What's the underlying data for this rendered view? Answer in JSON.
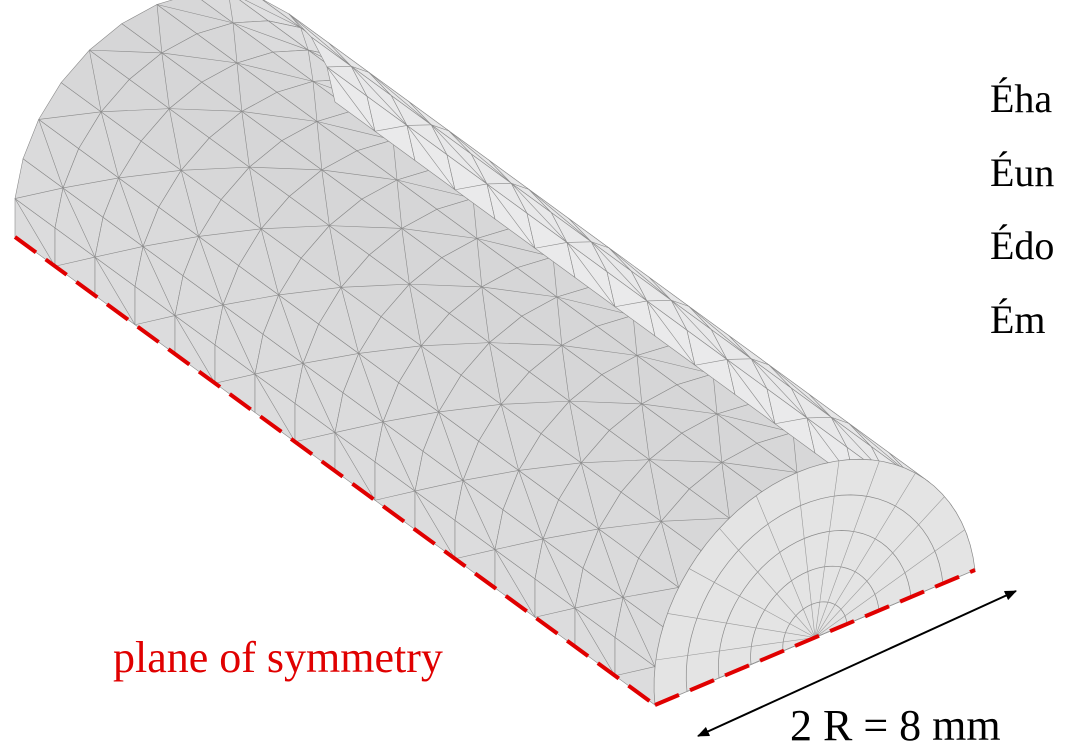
{
  "labels": {
    "symmetry": "plane of symmetry",
    "dimension": "2 R = 8 mm"
  },
  "text_lines": [
    "Éha",
    "Éun",
    "Édo",
    "Ém"
  ]
}
